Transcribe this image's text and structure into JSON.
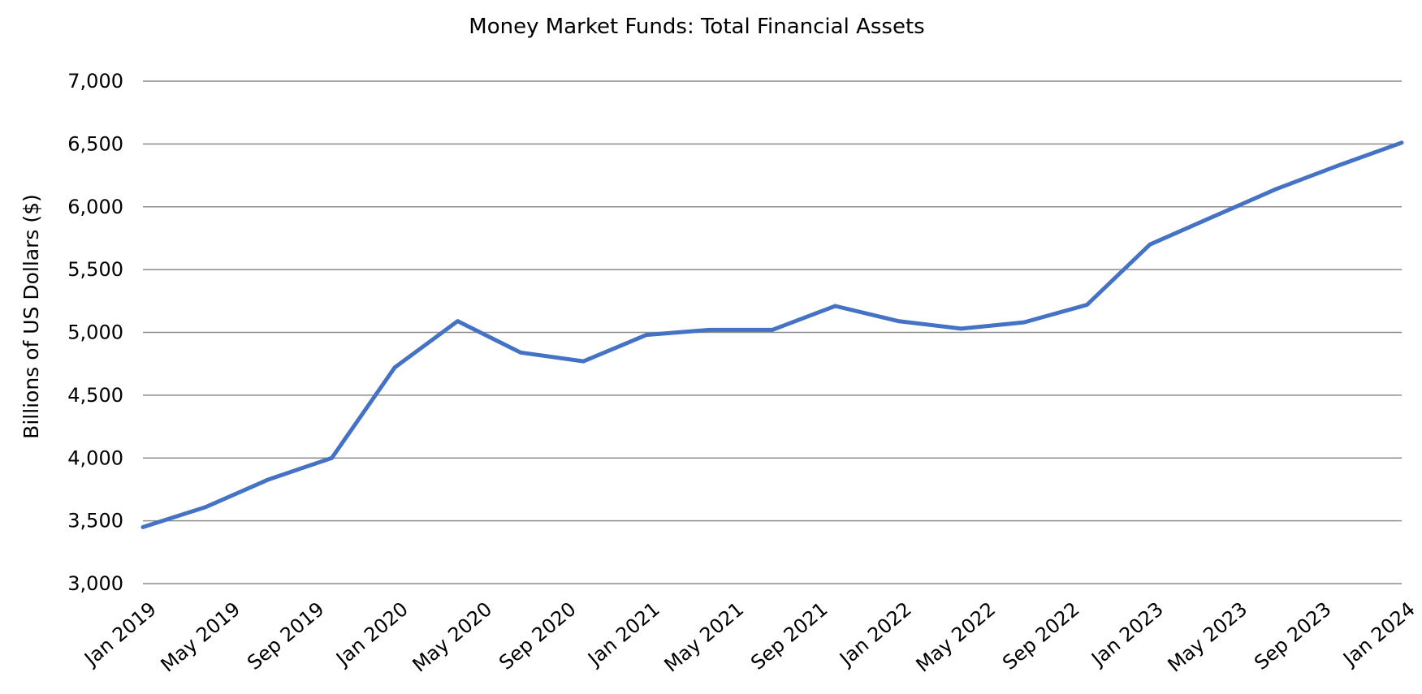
{
  "chart_data": {
    "type": "line",
    "title": "Money Market Funds: Total Financial  Assets",
    "xlabel": "",
    "ylabel": "Billions  of US Dollars  ($)",
    "ylim": [
      3000,
      7000
    ],
    "yticks": [
      3000,
      3500,
      4000,
      4500,
      5000,
      5500,
      6000,
      6500,
      7000
    ],
    "ytick_labels": [
      "3,000",
      "3,500",
      "4,000",
      "4,500",
      "5,000",
      "5,500",
      "6,000",
      "6,500",
      "7,000"
    ],
    "xtick_labels": [
      "Jan 2019",
      "May 2019",
      "Sep 2019",
      "Jan 2020",
      "May 2020",
      "Sep 2020",
      "Jan 2021",
      "May 2021",
      "Sep 2021",
      "Jan 2022",
      "May 2022",
      "Sep 2022",
      "Jan 2023",
      "May 2023",
      "Sep 2023",
      "Jan 2024"
    ],
    "grid": "horizontal",
    "legend": "none",
    "series": [
      {
        "color": "#4472c4",
        "x": [
          "Jan 2019",
          "Apr 2019",
          "Jul 2019",
          "Oct 2019",
          "Jan 2020",
          "Apr 2020",
          "Jul 2020",
          "Oct 2020",
          "Jan 2021",
          "Apr 2021",
          "Jul 2021",
          "Oct 2021",
          "Jan 2022",
          "Apr 2022",
          "Jul 2022",
          "Oct 2022",
          "Jan 2023",
          "Apr 2023",
          "Jul 2023",
          "Oct 2023",
          "Jan 2024"
        ],
        "values": [
          3450,
          3610,
          3830,
          4000,
          4720,
          5090,
          4840,
          4770,
          4980,
          5020,
          5020,
          5210,
          5090,
          5030,
          5080,
          5220,
          5700,
          5920,
          6140,
          6330,
          6510
        ]
      }
    ]
  }
}
